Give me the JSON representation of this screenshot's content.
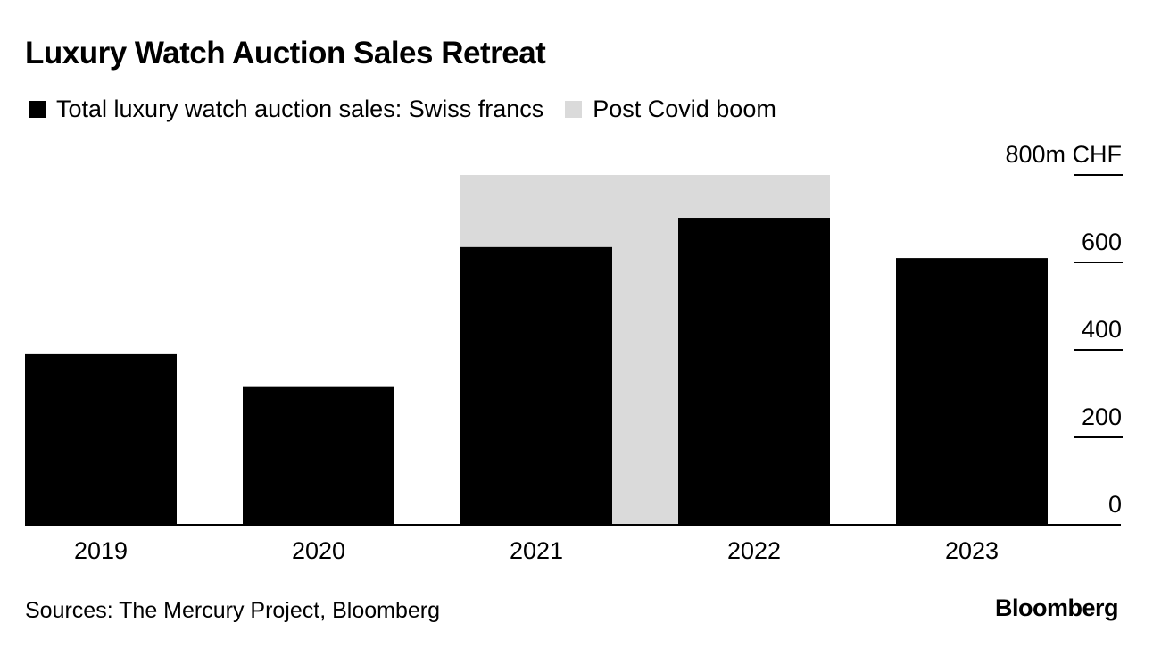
{
  "chart_data": {
    "type": "bar",
    "title": "Luxury Watch Auction Sales Retreat",
    "categories": [
      "2019",
      "2020",
      "2021",
      "2022",
      "2023"
    ],
    "series": [
      {
        "name": "Total luxury watch auction sales: Swiss francs",
        "color": "#000000",
        "values": [
          390,
          315,
          635,
          702,
          610
        ]
      }
    ],
    "highlight_band": {
      "label": "Post Covid boom",
      "color": "#dadada",
      "from_category": "2021",
      "to_category": "2022",
      "top_value": 800
    },
    "y_axis": {
      "position": "right",
      "unit_label": "800m CHF",
      "ticks": [
        {
          "value": 0,
          "label": "0"
        },
        {
          "value": 200,
          "label": "200"
        },
        {
          "value": 400,
          "label": "400"
        },
        {
          "value": 600,
          "label": "600"
        },
        {
          "value": 800,
          "label": "800m CHF"
        }
      ],
      "ylim": [
        0,
        800
      ]
    },
    "xlabel": "",
    "ylabel": "",
    "grid": false
  },
  "legend": {
    "items": [
      {
        "label": "Total luxury watch auction sales: Swiss francs",
        "color": "#000000"
      },
      {
        "label": "Post Covid boom",
        "color": "#dadada"
      }
    ]
  },
  "footer": {
    "source": "Sources: The Mercury Project, Bloomberg",
    "brand": "Bloomberg"
  }
}
